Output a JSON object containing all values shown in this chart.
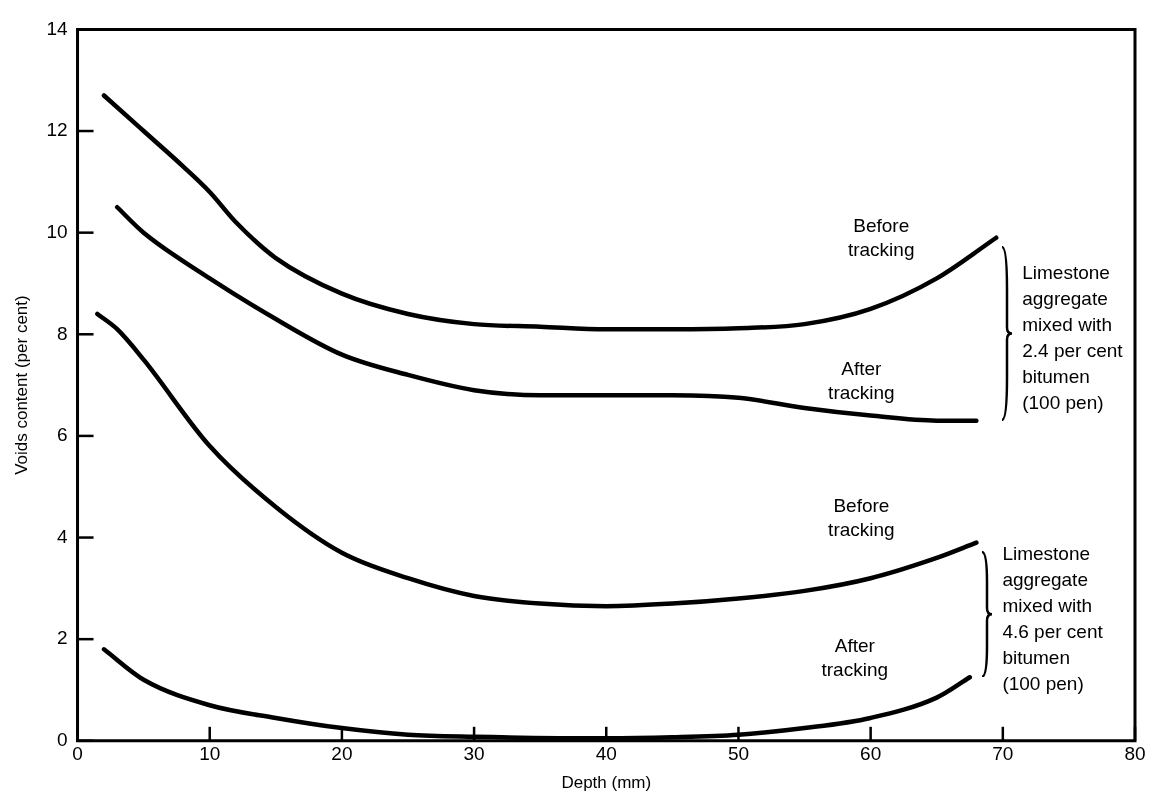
{
  "chart_data": {
    "type": "line",
    "xlabel": "Depth (mm)",
    "ylabel": "Voids content (per cent)",
    "xlim": [
      0,
      80
    ],
    "ylim": [
      0,
      14
    ],
    "xticks": [
      0,
      10,
      20,
      30,
      40,
      50,
      60,
      70,
      80
    ],
    "yticks": [
      0,
      2,
      4,
      6,
      8,
      10,
      12,
      14
    ],
    "marker": "none",
    "line_style": "solid",
    "series": [
      {
        "name": "Before tracking",
        "color": "#000000",
        "x": [
          2,
          5,
          8,
          10,
          12,
          15,
          20,
          25,
          30,
          35,
          40,
          45,
          50,
          55,
          60,
          65,
          69.5
        ],
        "values": [
          12.7,
          12,
          11.3,
          10.8,
          10.2,
          9.5,
          8.8,
          8.4,
          8.2,
          8.15,
          8.1,
          8.1,
          8.12,
          8.2,
          8.5,
          9.1,
          9.9
        ]
      },
      {
        "name": "After tracking",
        "color": "#000000",
        "x": [
          3,
          5,
          10,
          15,
          20,
          25,
          30,
          35,
          40,
          45,
          50,
          55,
          60,
          65,
          68
        ],
        "values": [
          10.5,
          10,
          9.1,
          8.3,
          7.6,
          7.2,
          6.9,
          6.8,
          6.8,
          6.8,
          6.75,
          6.55,
          6.4,
          6.3,
          6.3
        ]
      },
      {
        "name": "Before tracking",
        "color": "#000000",
        "x": [
          1.5,
          3,
          5,
          10,
          15,
          20,
          25,
          30,
          35,
          40,
          45,
          50,
          55,
          60,
          65,
          68
        ],
        "values": [
          8.4,
          8.1,
          7.5,
          5.8,
          4.6,
          3.7,
          3.2,
          2.85,
          2.7,
          2.65,
          2.7,
          2.8,
          2.95,
          3.2,
          3.6,
          3.9
        ]
      },
      {
        "name": "After tracking",
        "color": "#000000",
        "x": [
          2,
          5,
          10,
          15,
          20,
          25,
          30,
          40,
          45,
          50,
          55,
          60,
          65,
          67.5
        ],
        "values": [
          1.8,
          1.2,
          0.7,
          0.45,
          0.25,
          0.12,
          0.08,
          0.05,
          0.07,
          0.12,
          0.25,
          0.45,
          0.85,
          1.25
        ]
      }
    ],
    "annotations": [
      "Limestone\naggregate\nmixed with\n2.4 per cent\nbitumen\n(100 pen)",
      "Limestone\naggregate\nmixed with\n4.6 per cent\nbitumen\n(100 pen)"
    ]
  }
}
